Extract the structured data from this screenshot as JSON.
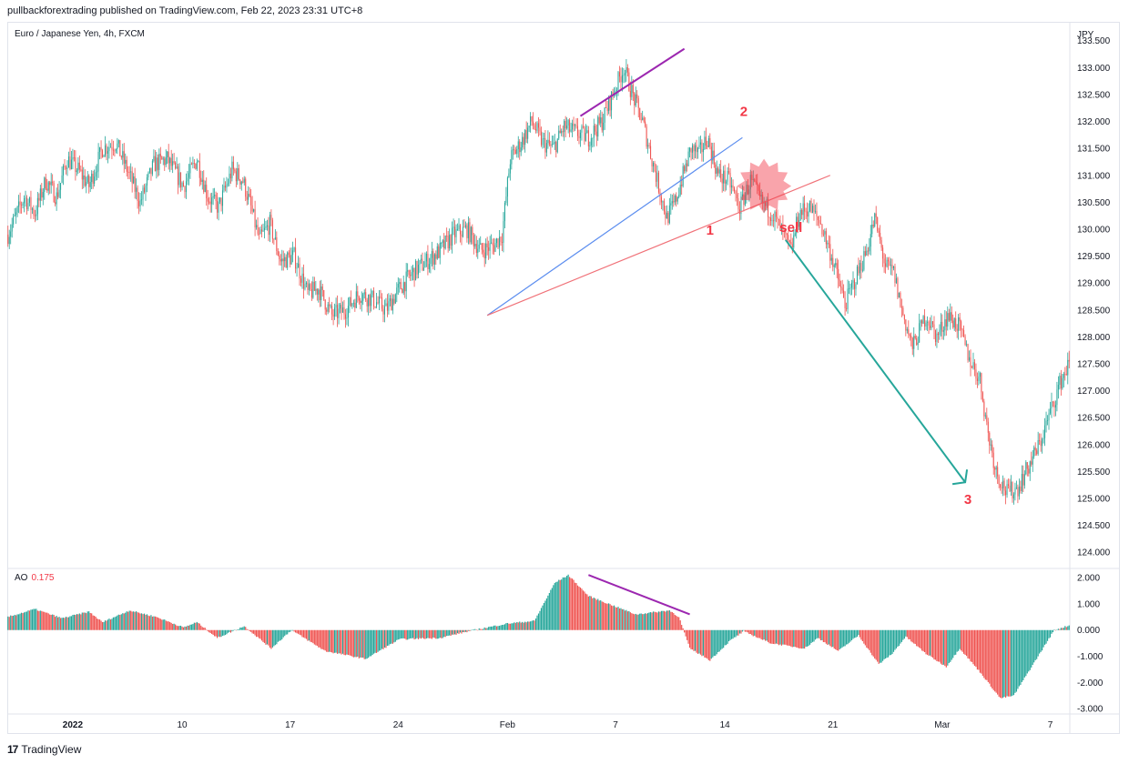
{
  "header": {
    "publisher": "pullbackforextrading published on TradingView.com, Feb 22, 2023 23:31 UTC+8"
  },
  "symbol": "Euro / Japanese Yen, 4h, FXCM",
  "footer": {
    "brand": "TradingView",
    "logo": "17"
  },
  "colors": {
    "up": "#26a69a",
    "down": "#ef5350",
    "divergence": "#9c27b0",
    "blue_line": "#5b8def",
    "red_line": "#f07178",
    "arrow": "#26a69a",
    "annotation": "#f23645"
  },
  "chart_data": [
    {
      "type": "candlestick",
      "currency_label": "JPY",
      "y_ticks": [
        "133.500",
        "133.000",
        "132.500",
        "132.000",
        "131.500",
        "131.000",
        "130.500",
        "130.000",
        "129.500",
        "129.000",
        "128.500",
        "128.000",
        "127.500",
        "127.000",
        "126.500",
        "126.000",
        "125.500",
        "125.000",
        "124.500",
        "124.000"
      ],
      "ylim": [
        123.7,
        133.85
      ],
      "x_ticks": [
        "2022",
        "10",
        "17",
        "24",
        "Feb",
        "7",
        "14",
        "21",
        "Mar",
        "7"
      ],
      "path": [
        [
          0,
          129.9
        ],
        [
          12,
          130.6
        ],
        [
          20,
          130.3
        ],
        [
          28,
          130.9
        ],
        [
          36,
          130.6
        ],
        [
          44,
          131.3
        ],
        [
          52,
          131.1
        ],
        [
          60,
          130.8
        ],
        [
          70,
          131.5
        ],
        [
          80,
          131.6
        ],
        [
          90,
          131.0
        ],
        [
          98,
          130.5
        ],
        [
          108,
          131.2
        ],
        [
          118,
          131.3
        ],
        [
          130,
          130.8
        ],
        [
          140,
          131.3
        ],
        [
          148,
          130.6
        ],
        [
          156,
          130.4
        ],
        [
          166,
          131.1
        ],
        [
          174,
          130.9
        ],
        [
          180,
          130.4
        ],
        [
          186,
          129.8
        ],
        [
          194,
          130.1
        ],
        [
          202,
          129.4
        ],
        [
          212,
          129.5
        ],
        [
          222,
          128.8
        ],
        [
          230,
          128.9
        ],
        [
          240,
          128.4
        ],
        [
          250,
          128.5
        ],
        [
          260,
          128.8
        ],
        [
          270,
          128.7
        ],
        [
          280,
          128.5
        ],
        [
          290,
          128.9
        ],
        [
          300,
          129.2
        ],
        [
          310,
          129.4
        ],
        [
          320,
          129.6
        ],
        [
          330,
          129.9
        ],
        [
          340,
          130.0
        ],
        [
          350,
          129.6
        ],
        [
          360,
          129.7
        ],
        [
          366,
          129.9
        ],
        [
          372,
          131.3
        ],
        [
          380,
          131.6
        ],
        [
          388,
          132.0
        ],
        [
          396,
          131.6
        ],
        [
          404,
          131.5
        ],
        [
          412,
          131.9
        ],
        [
          420,
          131.8
        ],
        [
          430,
          131.7
        ],
        [
          440,
          132.0
        ],
        [
          448,
          132.5
        ],
        [
          456,
          133.0
        ],
        [
          464,
          132.4
        ],
        [
          470,
          132.0
        ],
        [
          476,
          131.4
        ],
        [
          482,
          130.8
        ],
        [
          488,
          130.2
        ],
        [
          494,
          130.5
        ],
        [
          500,
          131.0
        ],
        [
          506,
          131.5
        ],
        [
          512,
          131.4
        ],
        [
          518,
          131.7
        ],
        [
          526,
          131.0
        ],
        [
          534,
          130.9
        ],
        [
          542,
          130.4
        ],
        [
          550,
          130.9
        ],
        [
          558,
          130.5
        ],
        [
          566,
          130.3
        ],
        [
          574,
          129.9
        ],
        [
          580,
          129.6
        ],
        [
          586,
          130.3
        ],
        [
          594,
          130.4
        ],
        [
          602,
          130.1
        ],
        [
          610,
          129.5
        ],
        [
          620,
          128.6
        ],
        [
          628,
          129.1
        ],
        [
          636,
          129.6
        ],
        [
          642,
          130.2
        ],
        [
          650,
          129.3
        ],
        [
          656,
          129.2
        ],
        [
          662,
          128.5
        ],
        [
          670,
          127.8
        ],
        [
          680,
          128.4
        ],
        [
          688,
          128.0
        ],
        [
          696,
          128.4
        ],
        [
          704,
          128.2
        ],
        [
          712,
          127.6
        ],
        [
          720,
          127.2
        ],
        [
          726,
          126.2
        ],
        [
          732,
          125.5
        ],
        [
          740,
          125.1
        ],
        [
          748,
          125.2
        ],
        [
          756,
          125.6
        ],
        [
          764,
          126.0
        ],
        [
          772,
          126.6
        ],
        [
          780,
          127.2
        ],
        [
          786,
          127.5
        ]
      ],
      "annotations": [
        {
          "label": "1",
          "x": 520,
          "y": 129.9
        },
        {
          "label": "2",
          "x": 545,
          "y": 132.1
        },
        {
          "label": "sell",
          "x": 580,
          "y": 129.95
        },
        {
          "label": "3",
          "x": 711,
          "y": 124.9
        }
      ],
      "trendlines": [
        {
          "name": "divergence-price",
          "from": [
            424,
            132.1
          ],
          "to": [
            501,
            133.35
          ]
        },
        {
          "name": "blue-trendline",
          "from": [
            355,
            128.4
          ],
          "to": [
            544,
            131.7
          ]
        },
        {
          "name": "red-trendline",
          "from": [
            355,
            128.4
          ],
          "to": [
            609,
            131.0
          ]
        },
        {
          "name": "sell-arrow",
          "from": [
            576,
            129.8
          ],
          "to": [
            709,
            125.3
          ]
        }
      ]
    },
    {
      "type": "bar",
      "name": "AO",
      "current_value": "0.175",
      "y_ticks": [
        "2.000",
        "1.000",
        "0.000",
        "-1.000",
        "-2.000",
        "-3.000"
      ],
      "ylim": [
        -3.2,
        2.35
      ],
      "series_path": [
        [
          0,
          0.5
        ],
        [
          20,
          0.8
        ],
        [
          40,
          0.45
        ],
        [
          60,
          0.7
        ],
        [
          70,
          0.3
        ],
        [
          90,
          0.75
        ],
        [
          110,
          0.5
        ],
        [
          130,
          0.1
        ],
        [
          140,
          0.3
        ],
        [
          155,
          -0.3
        ],
        [
          175,
          0.15
        ],
        [
          195,
          -0.7
        ],
        [
          210,
          0.0
        ],
        [
          235,
          -0.8
        ],
        [
          265,
          -1.1
        ],
        [
          290,
          -0.35
        ],
        [
          320,
          -0.3
        ],
        [
          345,
          0.0
        ],
        [
          370,
          0.25
        ],
        [
          390,
          0.35
        ],
        [
          405,
          1.8
        ],
        [
          415,
          2.1
        ],
        [
          430,
          1.3
        ],
        [
          465,
          0.6
        ],
        [
          490,
          0.75
        ],
        [
          497,
          0.5
        ],
        [
          505,
          -0.7
        ],
        [
          520,
          -1.15
        ],
        [
          535,
          -0.4
        ],
        [
          545,
          -0.05
        ],
        [
          565,
          -0.5
        ],
        [
          590,
          -0.7
        ],
        [
          600,
          -0.3
        ],
        [
          615,
          -0.8
        ],
        [
          630,
          -0.2
        ],
        [
          645,
          -1.3
        ],
        [
          655,
          -0.9
        ],
        [
          665,
          -0.25
        ],
        [
          680,
          -0.9
        ],
        [
          695,
          -1.4
        ],
        [
          705,
          -0.7
        ],
        [
          720,
          -1.6
        ],
        [
          735,
          -2.6
        ],
        [
          745,
          -2.5
        ],
        [
          775,
          0.0
        ],
        [
          786,
          0.175
        ]
      ],
      "divergence": {
        "from": [
          430,
          2.1
        ],
        "to": [
          505,
          0.6
        ]
      }
    }
  ]
}
